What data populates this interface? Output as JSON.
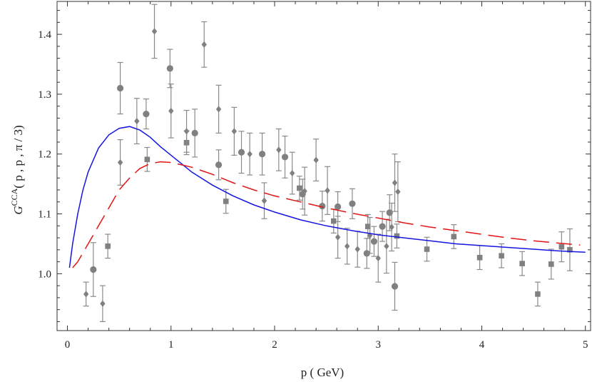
{
  "chart_data": {
    "type": "scatter",
    "xlabel": "p ( GeV)",
    "ylabel": {
      "prefix": "G",
      "superscript": "CCA",
      "args": "( p , p , π / 3)"
    },
    "xlim": [
      -0.1,
      5.05
    ],
    "ylim": [
      0.905,
      1.455
    ],
    "xticks": [
      "0",
      "1",
      "2",
      "3",
      "4",
      "5"
    ],
    "yticks": [
      "1.0",
      "1.1",
      "1.2",
      "1.3",
      "1.4"
    ],
    "grid": false,
    "legend": "none",
    "colors": {
      "solid": "#1515e0",
      "dashed": "#e01515",
      "data": "#808080",
      "error": "#8a8a8a"
    },
    "curves": [
      {
        "style": "solid",
        "color": "#1515e0",
        "points": [
          [
            0.02,
            1.01
          ],
          [
            0.05,
            1.05
          ],
          [
            0.1,
            1.1
          ],
          [
            0.15,
            1.14
          ],
          [
            0.2,
            1.17
          ],
          [
            0.3,
            1.21
          ],
          [
            0.4,
            1.232
          ],
          [
            0.5,
            1.243
          ],
          [
            0.6,
            1.246
          ],
          [
            0.7,
            1.24
          ],
          [
            0.8,
            1.228
          ],
          [
            0.9,
            1.212
          ],
          [
            1.0,
            1.198
          ],
          [
            1.2,
            1.17
          ],
          [
            1.4,
            1.148
          ],
          [
            1.6,
            1.13
          ],
          [
            1.8,
            1.115
          ],
          [
            2.0,
            1.103
          ],
          [
            2.25,
            1.09
          ],
          [
            2.5,
            1.08
          ],
          [
            2.75,
            1.072
          ],
          [
            3.0,
            1.065
          ],
          [
            3.25,
            1.06
          ],
          [
            3.5,
            1.055
          ],
          [
            3.75,
            1.05
          ],
          [
            4.0,
            1.047
          ],
          [
            4.25,
            1.044
          ],
          [
            4.5,
            1.041
          ],
          [
            4.75,
            1.038
          ],
          [
            5.0,
            1.036
          ]
        ]
      },
      {
        "style": "dashed",
        "color": "#e01515",
        "points": [
          [
            0.05,
            1.01
          ],
          [
            0.1,
            1.02
          ],
          [
            0.2,
            1.05
          ],
          [
            0.3,
            1.08
          ],
          [
            0.4,
            1.11
          ],
          [
            0.5,
            1.14
          ],
          [
            0.6,
            1.16
          ],
          [
            0.7,
            1.176
          ],
          [
            0.8,
            1.184
          ],
          [
            0.9,
            1.187
          ],
          [
            1.0,
            1.186
          ],
          [
            1.2,
            1.178
          ],
          [
            1.4,
            1.166
          ],
          [
            1.6,
            1.152
          ],
          [
            1.8,
            1.14
          ],
          [
            2.0,
            1.13
          ],
          [
            2.25,
            1.12
          ],
          [
            2.5,
            1.11
          ],
          [
            2.75,
            1.101
          ],
          [
            3.0,
            1.093
          ],
          [
            3.25,
            1.085
          ],
          [
            3.5,
            1.078
          ],
          [
            3.75,
            1.072
          ],
          [
            4.0,
            1.066
          ],
          [
            4.25,
            1.06
          ],
          [
            4.5,
            1.055
          ],
          [
            4.75,
            1.051
          ],
          [
            4.95,
            1.048
          ]
        ]
      }
    ],
    "series": [
      {
        "marker": "circle",
        "points": [
          [
            0.25,
            1.007,
            0.045
          ],
          [
            0.51,
            1.31,
            0.043
          ],
          [
            0.76,
            1.267,
            0.025
          ],
          [
            0.99,
            1.343,
            0.032
          ],
          [
            1.23,
            1.235,
            0.04
          ],
          [
            1.46,
            1.182,
            0.025
          ],
          [
            1.68,
            1.203,
            0.035
          ],
          [
            1.88,
            1.2,
            0.035
          ],
          [
            2.1,
            1.195,
            0.035
          ],
          [
            2.27,
            1.133,
            0.025
          ],
          [
            2.46,
            1.113,
            0.025
          ],
          [
            2.61,
            1.112,
            0.025
          ],
          [
            2.75,
            1.117,
            0.025
          ],
          [
            2.89,
            1.034,
            0.025
          ],
          [
            2.96,
            1.054,
            0.025
          ],
          [
            3.04,
            1.079,
            0.025
          ],
          [
            3.11,
            1.102,
            0.03
          ],
          [
            3.16,
            0.979,
            0.04
          ]
        ]
      },
      {
        "marker": "square",
        "points": [
          [
            0.39,
            1.046,
            0.02
          ],
          [
            0.77,
            1.191,
            0.02
          ],
          [
            1.15,
            1.219,
            0.02
          ],
          [
            1.53,
            1.121,
            0.02
          ],
          [
            2.24,
            1.143,
            0.02
          ],
          [
            2.57,
            1.088,
            0.02
          ],
          [
            2.9,
            1.079,
            0.02
          ],
          [
            3.18,
            1.063,
            0.02
          ],
          [
            3.47,
            1.041,
            0.02
          ],
          [
            3.73,
            1.062,
            0.02
          ],
          [
            3.98,
            1.027,
            0.02
          ],
          [
            4.19,
            1.03,
            0.02
          ],
          [
            4.39,
            1.017,
            0.02
          ],
          [
            4.54,
            0.966,
            0.02
          ],
          [
            4.67,
            1.016,
            0.025
          ],
          [
            4.77,
            1.045,
            0.025
          ],
          [
            4.85,
            1.04,
            0.035
          ]
        ]
      },
      {
        "marker": "diamond",
        "points": [
          [
            0.18,
            0.966,
            0.02
          ],
          [
            0.34,
            0.95,
            0.03
          ],
          [
            0.51,
            1.186,
            0.038
          ],
          [
            0.67,
            1.255,
            0.038
          ],
          [
            0.84,
            1.405,
            0.045
          ],
          [
            1.0,
            1.272,
            0.045
          ],
          [
            1.15,
            1.238,
            0.035
          ],
          [
            1.32,
            1.383,
            0.038
          ],
          [
            1.46,
            1.275,
            0.04
          ],
          [
            1.61,
            1.238,
            0.04
          ],
          [
            1.76,
            1.2,
            0.035
          ],
          [
            1.9,
            1.122,
            0.03
          ],
          [
            2.04,
            1.207,
            0.035
          ],
          [
            2.17,
            1.168,
            0.035
          ],
          [
            2.29,
            1.138,
            0.04
          ],
          [
            2.4,
            1.19,
            0.035
          ],
          [
            2.51,
            1.139,
            0.04
          ],
          [
            2.61,
            1.061,
            0.035
          ],
          [
            2.7,
            1.046,
            0.03
          ],
          [
            2.8,
            1.041,
            0.03
          ],
          [
            2.92,
            1.064,
            0.03
          ],
          [
            3.0,
            1.026,
            0.04
          ],
          [
            3.08,
            1.046,
            0.045
          ],
          [
            3.13,
            1.078,
            0.04
          ],
          [
            3.16,
            1.152,
            0.048
          ],
          [
            3.19,
            1.137,
            0.05
          ]
        ]
      }
    ]
  }
}
